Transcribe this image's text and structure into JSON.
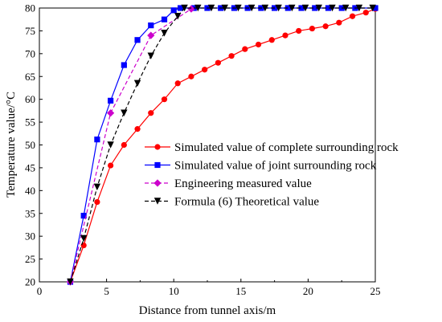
{
  "chart_data": {
    "type": "line",
    "xlabel": "Distance from tunnel axis/m",
    "ylabel": "Temperature value/°C",
    "xlim": [
      0,
      25
    ],
    "ylim": [
      20,
      80
    ],
    "x_ticks": [
      0,
      5,
      10,
      15,
      20,
      25
    ],
    "y_ticks": [
      20,
      25,
      30,
      35,
      40,
      45,
      50,
      55,
      60,
      65,
      70,
      75,
      80
    ],
    "grid": false,
    "legend_position": "center-right",
    "series": [
      {
        "name": "Simulated value of complete surrounding rock",
        "color": "#ff0000",
        "marker": "circle",
        "line": "solid",
        "x": [
          2.3,
          3.3,
          4.3,
          5.3,
          6.3,
          7.3,
          8.3,
          9.3,
          10.3,
          11.3,
          12.3,
          13.3,
          14.3,
          15.3,
          16.3,
          17.3,
          18.3,
          19.3,
          20.3,
          21.3,
          22.3,
          23.3,
          24.3,
          25
        ],
        "values": [
          20,
          28,
          37.5,
          45.5,
          50,
          53.5,
          57,
          60,
          63.5,
          65,
          66.5,
          68,
          69.5,
          71,
          72,
          73,
          74,
          75,
          75.5,
          76,
          76.8,
          78.2,
          79,
          79.8
        ]
      },
      {
        "name": "Simulated value of joint surrounding rock",
        "color": "#0000ff",
        "marker": "square",
        "line": "solid",
        "x": [
          2.3,
          3.3,
          4.3,
          5.3,
          6.3,
          7.3,
          8.3,
          9.3,
          10,
          10.5,
          11.5,
          12.5,
          13.5,
          14.5,
          15.5,
          16.5,
          17.5,
          18.5,
          19.5,
          20.5,
          21.5,
          22.5,
          23.5,
          25
        ],
        "values": [
          20,
          34.5,
          51.2,
          59.7,
          67.5,
          73,
          76.2,
          77.5,
          79.5,
          80,
          80,
          80,
          80,
          80,
          80,
          80,
          80,
          80,
          80,
          80,
          80,
          80,
          80,
          80
        ]
      },
      {
        "name": "Engineering measured value",
        "color": "#cc00cc",
        "marker": "diamond",
        "line": "dashed",
        "x": [
          2.3,
          5.3,
          8.3,
          11.3
        ],
        "values": [
          20,
          57,
          74,
          79.8
        ]
      },
      {
        "name": "Formula (6) Theoretical value",
        "color": "#000000",
        "marker": "triangle-down",
        "line": "dashed",
        "x": [
          2.3,
          3.3,
          4.3,
          5.3,
          6.3,
          7.3,
          8.3,
          9.3,
          10.3,
          10.8,
          11.8,
          12.8,
          13.8,
          14.8,
          15.8,
          16.8,
          17.8,
          18.8,
          19.8,
          20.8,
          21.8,
          22.8,
          23.8,
          24.8
        ],
        "values": [
          20,
          29.5,
          40.8,
          50,
          57,
          63.5,
          69.5,
          74.5,
          78.2,
          80,
          80,
          80,
          80,
          80,
          80,
          80,
          80,
          80,
          80,
          80,
          80,
          80,
          80,
          80
        ]
      }
    ]
  }
}
